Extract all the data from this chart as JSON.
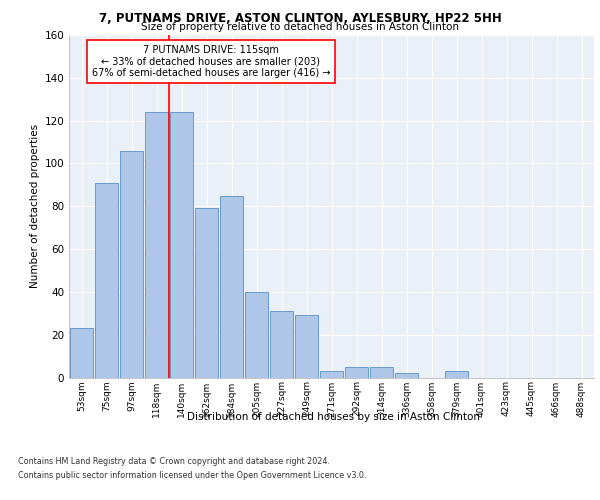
{
  "title_line1": "7, PUTNAMS DRIVE, ASTON CLINTON, AYLESBURY, HP22 5HH",
  "title_line2": "Size of property relative to detached houses in Aston Clinton",
  "xlabel": "Distribution of detached houses by size in Aston Clinton",
  "ylabel": "Number of detached properties",
  "categories": [
    "53sqm",
    "75sqm",
    "97sqm",
    "118sqm",
    "140sqm",
    "162sqm",
    "184sqm",
    "205sqm",
    "227sqm",
    "249sqm",
    "271sqm",
    "292sqm",
    "314sqm",
    "336sqm",
    "358sqm",
    "379sqm",
    "401sqm",
    "423sqm",
    "445sqm",
    "466sqm",
    "488sqm"
  ],
  "values": [
    23,
    91,
    106,
    124,
    124,
    79,
    85,
    40,
    31,
    29,
    3,
    5,
    5,
    2,
    0,
    3,
    0,
    0,
    0,
    0,
    0
  ],
  "bar_color": "#aec6e8",
  "bar_edge_color": "#5a8fc2",
  "vline_x": 3.5,
  "vline_color": "red",
  "annotation_text": "7 PUTNAMS DRIVE: 115sqm\n← 33% of detached houses are smaller (203)\n67% of semi-detached houses are larger (416) →",
  "annotation_box_color": "white",
  "annotation_box_edge": "red",
  "ylim": [
    0,
    160
  ],
  "yticks": [
    0,
    20,
    40,
    60,
    80,
    100,
    120,
    140,
    160
  ],
  "footer_line1": "Contains HM Land Registry data © Crown copyright and database right 2024.",
  "footer_line2": "Contains public sector information licensed under the Open Government Licence v3.0.",
  "plot_bg_color": "#eaf0f8"
}
